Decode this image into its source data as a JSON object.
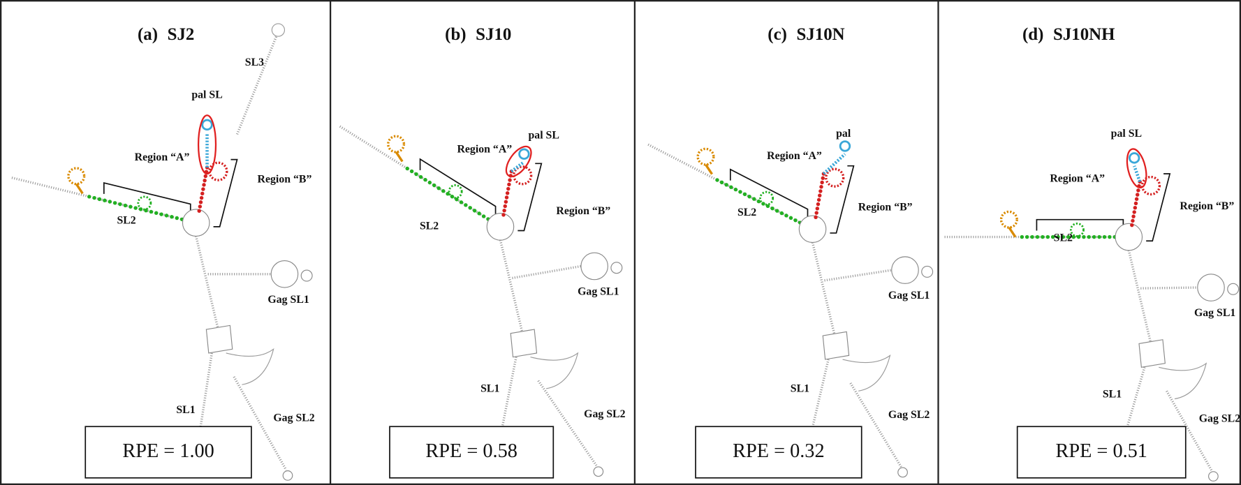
{
  "panels": [
    {
      "label": "(a)",
      "name": "SJ2",
      "labels": {
        "sl3": "SL3",
        "pal": "pal SL",
        "region_a": "Region “A”",
        "region_b": "Region “B”",
        "sl2": "SL2",
        "gag_sl1": "Gag SL1",
        "sl1": "SL1",
        "gag_sl2": "Gag SL2"
      },
      "rpe": "RPE = 1.00"
    },
    {
      "label": "(b)",
      "name": "SJ10",
      "labels": {
        "pal": "pal SL",
        "region_a": "Region “A”",
        "region_b": "Region “B”",
        "sl2": "SL2",
        "gag_sl1": "Gag SL1",
        "sl1": "SL1",
        "gag_sl2": "Gag SL2"
      },
      "rpe": "RPE = 0.58"
    },
    {
      "label": "(c)",
      "name": "SJ10N",
      "labels": {
        "pal": "pal",
        "region_a": "Region “A”",
        "region_b": "Region “B”",
        "sl2": "SL2",
        "gag_sl1": "Gag SL1",
        "sl1": "SL1",
        "gag_sl2": "Gag SL2"
      },
      "rpe": "RPE = 0.32"
    },
    {
      "label": "(d)",
      "name": "SJ10NH",
      "labels": {
        "pal": "pal SL",
        "region_a": "Region “A”",
        "region_b": "Region “B”",
        "sl2": "SL2",
        "gag_sl1": "Gag SL1",
        "sl1": "SL1",
        "gag_sl2": "Gag SL2"
      },
      "rpe": "RPE = 0.51"
    }
  ]
}
